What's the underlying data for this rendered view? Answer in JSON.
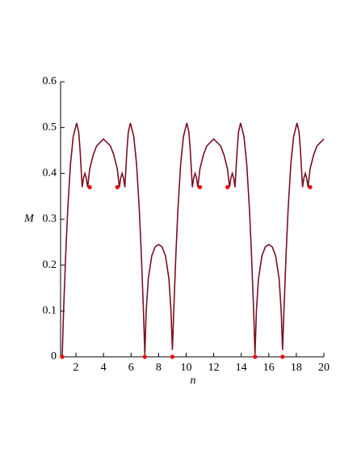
{
  "chart_data": {
    "type": "line",
    "xlabel": "n",
    "ylabel": "M",
    "xlim": [
      1,
      20
    ],
    "ylim": [
      0,
      0.6
    ],
    "xticks": [
      2,
      4,
      6,
      8,
      10,
      12,
      14,
      16,
      18,
      20
    ],
    "yticks": [
      0,
      0.1,
      0.2,
      0.3,
      0.4,
      0.5,
      0.6
    ],
    "series": [
      {
        "type": "line",
        "color": "#7a1020",
        "x": [
          1,
          1.1,
          1.25,
          1.4,
          1.6,
          1.8,
          2.05,
          2.2,
          2.3,
          2.45,
          2.55,
          2.65,
          2.75,
          2.85,
          3,
          3.25,
          3.5,
          4,
          4.5,
          4.75,
          5,
          5.15,
          5.25,
          5.35,
          5.45,
          5.55,
          5.7,
          5.8,
          5.95,
          6.2,
          6.4,
          6.6,
          6.75,
          6.9,
          7,
          7.1,
          7.25,
          7.5,
          7.75,
          8,
          8.25,
          8.5,
          8.75,
          8.9,
          9,
          9.1,
          9.25,
          9.4,
          9.6,
          9.8,
          10.05,
          10.2,
          10.3,
          10.45,
          10.55,
          10.65,
          10.75,
          10.85,
          11,
          11.25,
          11.5,
          12,
          12.5,
          12.75,
          13,
          13.15,
          13.25,
          13.35,
          13.45,
          13.55,
          13.7,
          13.8,
          13.95,
          14.2,
          14.4,
          14.6,
          14.75,
          14.9,
          15,
          15.1,
          15.25,
          15.5,
          15.75,
          16,
          16.25,
          16.5,
          16.75,
          16.9,
          17,
          17.1,
          17.25,
          17.4,
          17.6,
          17.8,
          18.05,
          18.2,
          18.3,
          18.45,
          18.55,
          18.65,
          18.75,
          18.85,
          19,
          19.25,
          19.5,
          20
        ],
        "values": [
          0,
          0.1,
          0.22,
          0.32,
          0.42,
          0.48,
          0.51,
          0.49,
          0.45,
          0.37,
          0.39,
          0.4,
          0.39,
          0.37,
          0.41,
          0.44,
          0.46,
          0.475,
          0.46,
          0.44,
          0.41,
          0.37,
          0.39,
          0.4,
          0.39,
          0.37,
          0.45,
          0.49,
          0.51,
          0.48,
          0.42,
          0.32,
          0.22,
          0.1,
          0.005,
          0.1,
          0.17,
          0.22,
          0.24,
          0.245,
          0.24,
          0.22,
          0.17,
          0.1,
          0.015,
          0.1,
          0.22,
          0.32,
          0.42,
          0.48,
          0.51,
          0.49,
          0.45,
          0.37,
          0.39,
          0.4,
          0.39,
          0.37,
          0.41,
          0.44,
          0.46,
          0.475,
          0.46,
          0.44,
          0.41,
          0.37,
          0.39,
          0.4,
          0.39,
          0.37,
          0.45,
          0.49,
          0.51,
          0.48,
          0.42,
          0.32,
          0.22,
          0.1,
          0.005,
          0.1,
          0.17,
          0.22,
          0.24,
          0.245,
          0.24,
          0.22,
          0.17,
          0.1,
          0.015,
          0.1,
          0.22,
          0.32,
          0.42,
          0.48,
          0.51,
          0.49,
          0.45,
          0.37,
          0.39,
          0.4,
          0.39,
          0.37,
          0.41,
          0.44,
          0.46,
          0.475
        ]
      },
      {
        "type": "scatter",
        "color": "#ee0000",
        "x": [
          1,
          3,
          5,
          7,
          9,
          11,
          13,
          15,
          17,
          19
        ],
        "values": [
          0,
          0.37,
          0.37,
          0,
          0,
          0.37,
          0.37,
          0,
          0,
          0.37
        ]
      }
    ]
  }
}
